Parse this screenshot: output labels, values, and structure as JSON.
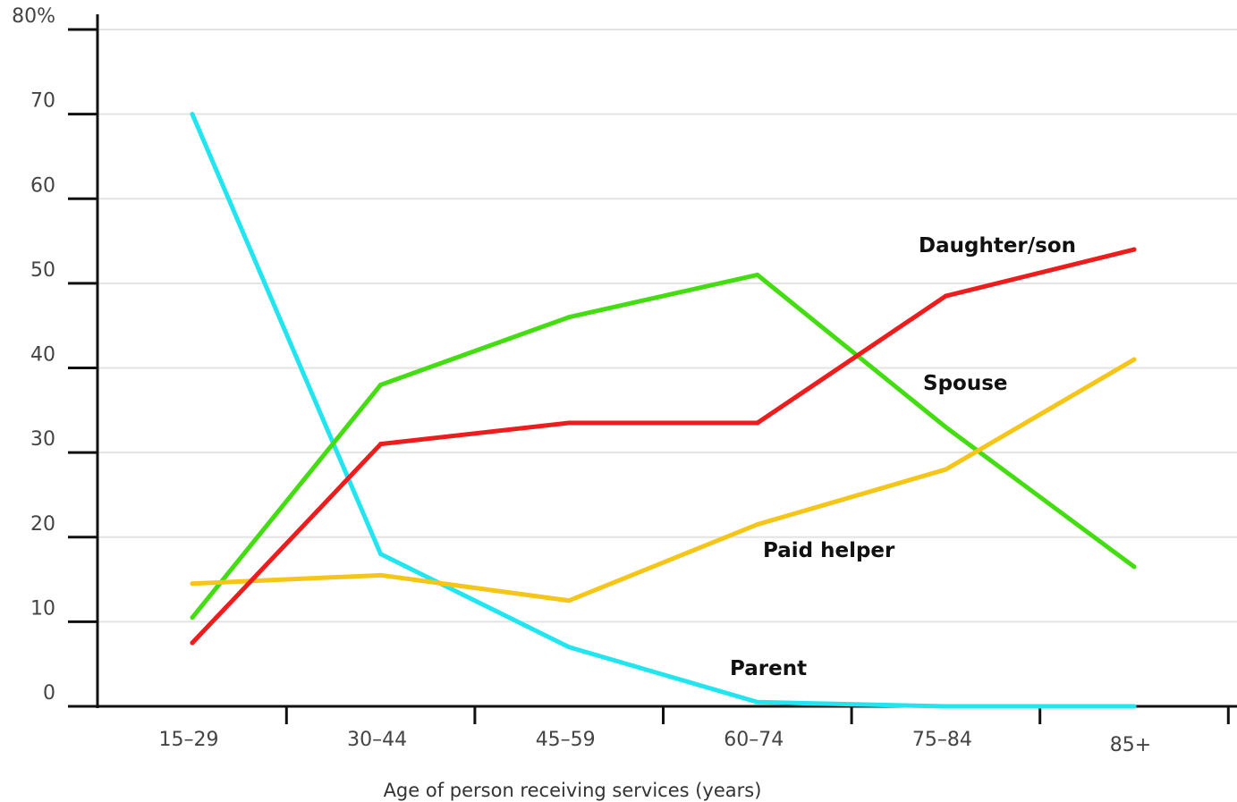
{
  "chart_data": {
    "type": "line",
    "title": "",
    "xlabel": "Age of person receiving services (years)",
    "ylabel": "",
    "categories": [
      "15–29",
      "30–44",
      "45–59",
      "60–74",
      "75–84",
      "85+"
    ],
    "ylim": [
      0,
      80
    ],
    "y_ticks": [
      0,
      10,
      20,
      30,
      40,
      50,
      60,
      70,
      80
    ],
    "y_tick_labels": [
      "0",
      "10",
      "20",
      "30",
      "40",
      "50",
      "60",
      "70",
      "80%"
    ],
    "grid": "horizontal",
    "legend": "inline labels",
    "series": [
      {
        "name": "Parent",
        "color": "#22e5f0",
        "values": [
          70,
          18,
          7,
          0.5,
          0,
          0
        ]
      },
      {
        "name": "Spouse",
        "color": "#44dd11",
        "values": [
          10.5,
          38,
          46,
          51,
          33,
          16.5
        ]
      },
      {
        "name": "Daughter/son",
        "color": "#ee1c1c",
        "values": [
          7.5,
          31,
          33.5,
          33.5,
          48.5,
          54
        ]
      },
      {
        "name": "Paid helper",
        "color": "#f5c518",
        "values": [
          14.5,
          15.5,
          12.5,
          21.5,
          28,
          41
        ]
      }
    ]
  }
}
